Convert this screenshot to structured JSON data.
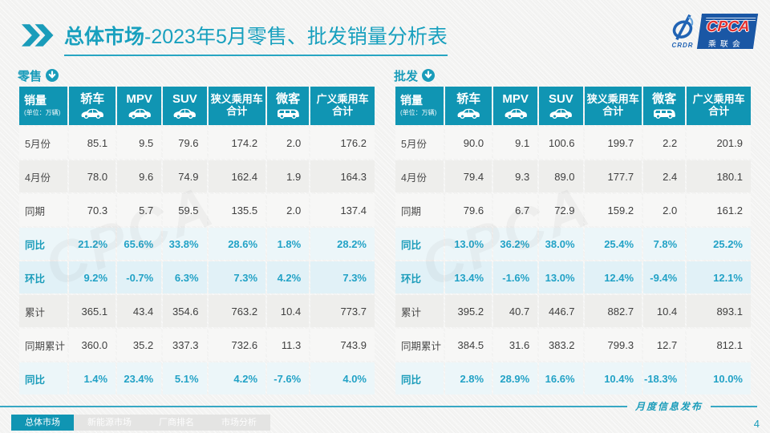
{
  "header": {
    "title_emphasis": "总体市场",
    "title_rest": "-2023年5月零售、批发销量分析表",
    "logo": {
      "crdr": "CRDR",
      "cpca": "CPCA",
      "cpca_sub": "乘联会"
    }
  },
  "columns": [
    {
      "label": "销量",
      "unit": "(单位：万辆)"
    },
    {
      "label": "轿车",
      "icon": "sedan-icon"
    },
    {
      "label": "MPV",
      "icon": "mpv-icon"
    },
    {
      "label": "SUV",
      "icon": "suv-icon"
    },
    {
      "label": "狭义乘用车",
      "label2": "合计"
    },
    {
      "label": "微客",
      "icon": "minivan-icon"
    },
    {
      "label": "广义乘用车",
      "label2": "合计"
    }
  ],
  "tables": [
    {
      "id": "retail",
      "label": "零售",
      "rows": [
        {
          "label": "5月份",
          "variant": "a",
          "values": [
            "85.1",
            "9.5",
            "79.6",
            "174.2",
            "2.0",
            "176.2"
          ]
        },
        {
          "label": "4月份",
          "variant": "b",
          "values": [
            "78.0",
            "9.6",
            "74.9",
            "162.4",
            "1.9",
            "164.3"
          ]
        },
        {
          "label": "同期",
          "variant": "a",
          "values": [
            "70.3",
            "5.7",
            "59.5",
            "135.5",
            "2.0",
            "137.4"
          ]
        },
        {
          "label": "同比",
          "variant": "pct",
          "values": [
            "21.2%",
            "65.6%",
            "33.8%",
            "28.6%",
            "1.8%",
            "28.2%"
          ]
        },
        {
          "label": "环比",
          "variant": "pct2",
          "values": [
            "9.2%",
            "-0.7%",
            "6.3%",
            "7.3%",
            "4.2%",
            "7.3%"
          ]
        },
        {
          "label": "累计",
          "variant": "b",
          "values": [
            "365.1",
            "43.4",
            "354.6",
            "763.2",
            "10.4",
            "773.7"
          ]
        },
        {
          "label": "同期累计",
          "variant": "a",
          "values": [
            "360.0",
            "35.2",
            "337.3",
            "732.6",
            "11.3",
            "743.9"
          ]
        },
        {
          "label": "同比",
          "variant": "pct",
          "values": [
            "1.4%",
            "23.4%",
            "5.1%",
            "4.2%",
            "-7.6%",
            "4.0%"
          ]
        }
      ]
    },
    {
      "id": "wholesale",
      "label": "批发",
      "rows": [
        {
          "label": "5月份",
          "variant": "a",
          "values": [
            "90.0",
            "9.1",
            "100.6",
            "199.7",
            "2.2",
            "201.9"
          ]
        },
        {
          "label": "4月份",
          "variant": "b",
          "values": [
            "79.4",
            "9.3",
            "89.0",
            "177.7",
            "2.4",
            "180.1"
          ]
        },
        {
          "label": "同期",
          "variant": "a",
          "values": [
            "79.6",
            "6.7",
            "72.9",
            "159.2",
            "2.0",
            "161.2"
          ]
        },
        {
          "label": "同比",
          "variant": "pct",
          "values": [
            "13.0%",
            "36.2%",
            "38.0%",
            "25.4%",
            "7.8%",
            "25.2%"
          ]
        },
        {
          "label": "环比",
          "variant": "pct2",
          "values": [
            "13.4%",
            "-1.6%",
            "13.0%",
            "12.4%",
            "-9.4%",
            "12.1%"
          ]
        },
        {
          "label": "累计",
          "variant": "b",
          "values": [
            "395.2",
            "40.7",
            "446.7",
            "882.7",
            "10.4",
            "893.1"
          ]
        },
        {
          "label": "同期累计",
          "variant": "a",
          "values": [
            "384.5",
            "31.6",
            "383.2",
            "799.3",
            "12.7",
            "812.1"
          ]
        },
        {
          "label": "同比",
          "variant": "pct",
          "values": [
            "2.8%",
            "28.9%",
            "16.6%",
            "10.4%",
            "-18.3%",
            "10.0%"
          ]
        }
      ]
    }
  ],
  "footer": {
    "tabs": [
      {
        "label": "总体市场",
        "active": true
      },
      {
        "label": "新能源市场",
        "active": false
      },
      {
        "label": "厂商排名",
        "active": false
      },
      {
        "label": "市场分析",
        "active": false
      }
    ],
    "note": "月度信息发布",
    "page_number": "4"
  },
  "watermark": "CPCA",
  "colors": {
    "teal": "#1095b3",
    "teal_text": "#22a2c6",
    "row_cyan": "#e1f1f7",
    "navy": "#1a57a5",
    "red": "#e2312f"
  }
}
